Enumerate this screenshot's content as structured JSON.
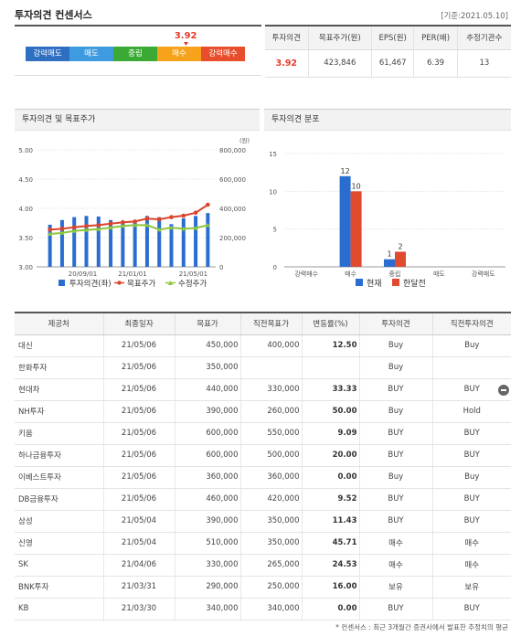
{
  "header": {
    "title": "투자의견 컨센서스",
    "base_date": "[기준:2021.05.10]"
  },
  "opinion_scale": {
    "current_value": "3.92",
    "segments": [
      {
        "label": "강력매도",
        "color": "#2f6fc1"
      },
      {
        "label": "매도",
        "color": "#3f9be0"
      },
      {
        "label": "중립",
        "color": "#3aaa35"
      },
      {
        "label": "매수",
        "color": "#f7a21b"
      },
      {
        "label": "강력매수",
        "color": "#e94e2c"
      }
    ],
    "current_fraction": 0.73
  },
  "summary": {
    "headers": [
      "투자의견",
      "목표주가(원)",
      "EPS(원)",
      "PER(배)",
      "추정기관수"
    ],
    "values": [
      "3.92",
      "423,846",
      "61,467",
      "6.39",
      "13"
    ]
  },
  "panels": {
    "opinion_target_title": "투자의견 및 목표주가",
    "distribution_title": "투자의견 분포"
  },
  "chart_data": [
    {
      "type": "bar+line",
      "title": "투자의견 및 목표주가",
      "left_axis": {
        "ticks": [
          "3.00",
          "3.50",
          "4.00",
          "4.50",
          "5.00"
        ],
        "ylim": [
          3.0,
          5.0
        ]
      },
      "right_axis": {
        "ticks": [
          "0",
          "200,000",
          "400,000",
          "600,000",
          "800,000"
        ],
        "ylim": [
          0,
          800000
        ],
        "unit": "(원)"
      },
      "x_ticks": [
        "20/09/01",
        "21/01/01",
        "21/05/01"
      ],
      "series": [
        {
          "name": "투자의견(좌)",
          "kind": "bar",
          "color": "#2a6dd0",
          "values": [
            3.72,
            3.8,
            3.85,
            3.87,
            3.86,
            3.8,
            3.75,
            3.78,
            3.87,
            3.85,
            3.73,
            3.83,
            3.87,
            3.92
          ]
        },
        {
          "name": "목표주가",
          "kind": "line",
          "color": "#d9442e",
          "values": [
            255000,
            260000,
            270000,
            280000,
            285000,
            295000,
            305000,
            310000,
            330000,
            325000,
            340000,
            350000,
            370000,
            425000
          ]
        },
        {
          "name": "수정주가",
          "kind": "line",
          "color": "#8ec63f",
          "values": [
            225000,
            232000,
            245000,
            252000,
            258000,
            268000,
            280000,
            285000,
            285000,
            255000,
            268000,
            260000,
            265000,
            285000
          ]
        }
      ]
    },
    {
      "type": "bar",
      "title": "투자의견 분포",
      "categories": [
        "강력매수",
        "매수",
        "중립",
        "매도",
        "강력매도"
      ],
      "ylim": [
        0,
        15
      ],
      "y_ticks": [
        "0",
        "5",
        "10",
        "15"
      ],
      "series": [
        {
          "name": "현재",
          "color": "#2a6dd0",
          "values": [
            0,
            12,
            1,
            0,
            0
          ]
        },
        {
          "name": "한달전",
          "color": "#e04a2f",
          "values": [
            0,
            10,
            2,
            0,
            0
          ]
        }
      ]
    }
  ],
  "brokers": {
    "headers": [
      "제공처",
      "최종일자",
      "목표가",
      "직전목표가",
      "변동률(%)",
      "투자의견",
      "직전투자의견"
    ],
    "rows": [
      [
        "대신",
        "21/05/06",
        "450,000",
        "400,000",
        "12.50",
        "Buy",
        "Buy"
      ],
      [
        "한화투자",
        "21/05/06",
        "350,000",
        "",
        "",
        "Buy",
        ""
      ],
      [
        "현대차",
        "21/05/06",
        "440,000",
        "330,000",
        "33.33",
        "BUY",
        "BUY"
      ],
      [
        "NH투자",
        "21/05/06",
        "390,000",
        "260,000",
        "50.00",
        "Buy",
        "Hold"
      ],
      [
        "키움",
        "21/05/06",
        "600,000",
        "550,000",
        "9.09",
        "BUY",
        "BUY"
      ],
      [
        "하나금융투자",
        "21/05/06",
        "600,000",
        "500,000",
        "20.00",
        "BUY",
        "BUY"
      ],
      [
        "이베스트투자",
        "21/05/06",
        "360,000",
        "360,000",
        "0.00",
        "Buy",
        "Buy"
      ],
      [
        "DB금융투자",
        "21/05/06",
        "460,000",
        "420,000",
        "9.52",
        "BUY",
        "BUY"
      ],
      [
        "삼성",
        "21/05/04",
        "390,000",
        "350,000",
        "11.43",
        "BUY",
        "BUY"
      ],
      [
        "신영",
        "21/05/04",
        "510,000",
        "350,000",
        "45.71",
        "매수",
        "매수"
      ],
      [
        "SK",
        "21/04/06",
        "330,000",
        "265,000",
        "24.53",
        "매수",
        "매수"
      ],
      [
        "BNK투자",
        "21/03/31",
        "290,000",
        "250,000",
        "16.00",
        "보유",
        "보유"
      ],
      [
        "KB",
        "21/03/30",
        "340,000",
        "340,000",
        "0.00",
        "BUY",
        "BUY"
      ]
    ]
  },
  "footnote": "* 컨센서스 : 최근 3개월간 증권사에서 발표한 추정치의 평균"
}
